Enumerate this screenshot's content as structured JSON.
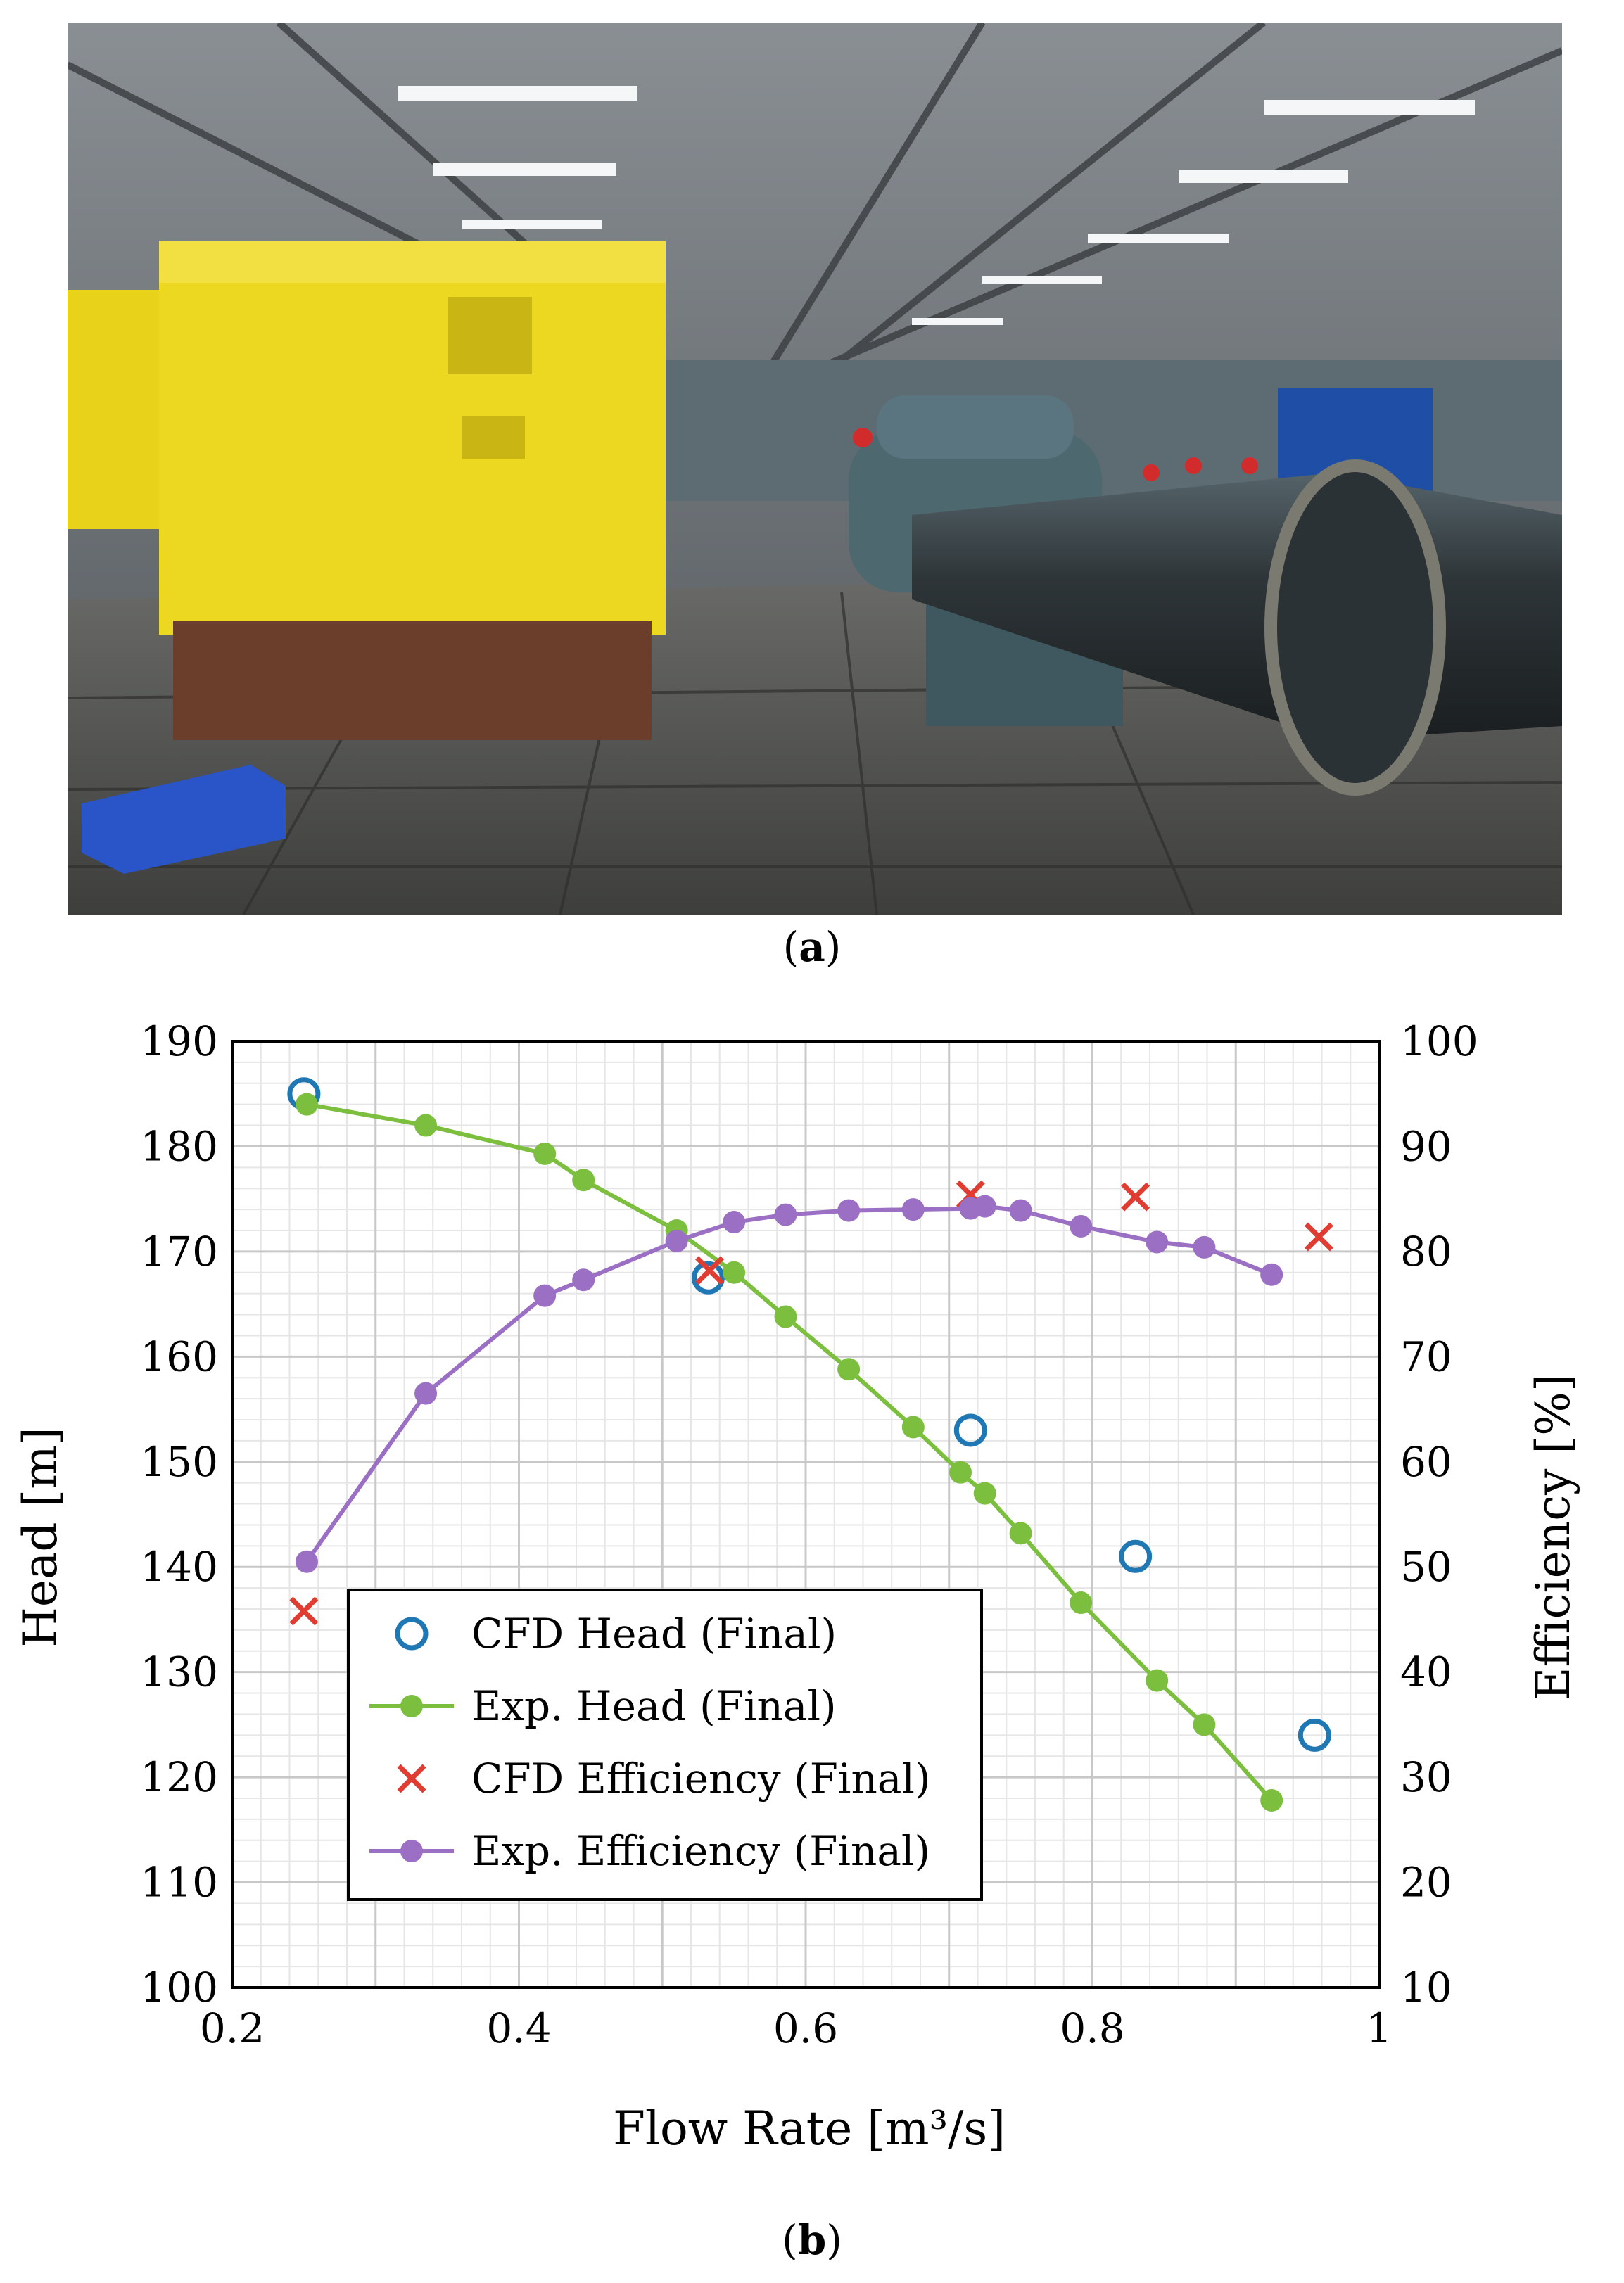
{
  "panel_a": {
    "caption_label": "a",
    "photo": {
      "subject": "industrial pump test rig in a factory hall",
      "colors": {
        "motor": "#e9d51c",
        "pump": "#4e6870",
        "floor": "#5a5a58",
        "crate": "#2a55c8"
      }
    }
  },
  "panel_b": {
    "caption_label": "b"
  },
  "chart_data": {
    "type": "line",
    "xlabel": "Flow Rate [m³/s]",
    "ylabel": "Head [m]",
    "y2label": "Efficiency [%]",
    "xlim": [
      0.2,
      1.0
    ],
    "ylim": [
      100,
      190
    ],
    "y2lim": [
      10,
      100
    ],
    "xticks": [
      0.2,
      0.4,
      0.6,
      0.8,
      1.0
    ],
    "xtick_labels": [
      "0.2",
      "0.4",
      "0.6",
      "0.8",
      "1"
    ],
    "yticks": [
      100,
      110,
      120,
      130,
      140,
      150,
      160,
      170,
      180,
      190
    ],
    "y2ticks": [
      10,
      20,
      30,
      40,
      50,
      60,
      70,
      80,
      90,
      100
    ],
    "grid": true,
    "legend_position": "lower-left",
    "series": [
      {
        "name": "CFD Head (Final)",
        "axis": "left",
        "style": "open-circle",
        "color": "#1f77b4",
        "x": [
          0.25,
          0.532,
          0.715,
          0.83,
          0.955
        ],
        "y": [
          185.0,
          167.5,
          153.0,
          141.0,
          124.0
        ]
      },
      {
        "name": "Exp. Head (Final)",
        "axis": "left",
        "style": "line-dot",
        "color": "#7cbf3f",
        "x": [
          0.252,
          0.335,
          0.418,
          0.445,
          0.51,
          0.55,
          0.586,
          0.63,
          0.675,
          0.708,
          0.725,
          0.75,
          0.792,
          0.845,
          0.878,
          0.925
        ],
        "y": [
          184.0,
          182.0,
          179.3,
          176.8,
          172.0,
          168.0,
          163.8,
          158.8,
          153.3,
          149.0,
          147.0,
          143.2,
          136.6,
          129.2,
          125.0,
          117.8
        ]
      },
      {
        "name": "CFD Efficiency (Final)",
        "axis": "right",
        "style": "cross",
        "color": "#e03c31",
        "x": [
          0.25,
          0.533,
          0.715,
          0.83,
          0.958
        ],
        "y": [
          45.8,
          78.2,
          85.4,
          85.2,
          81.4
        ]
      },
      {
        "name": "Exp. Efficiency (Final)",
        "axis": "right",
        "style": "line-dot",
        "color": "#9b6fc4",
        "x": [
          0.252,
          0.335,
          0.418,
          0.445,
          0.51,
          0.55,
          0.586,
          0.63,
          0.675,
          0.715,
          0.725,
          0.75,
          0.792,
          0.845,
          0.878,
          0.925
        ],
        "y": [
          50.5,
          66.5,
          75.8,
          77.3,
          81.0,
          82.8,
          83.5,
          83.9,
          84.0,
          84.1,
          84.3,
          83.9,
          82.4,
          80.9,
          80.4,
          77.8
        ]
      }
    ]
  }
}
